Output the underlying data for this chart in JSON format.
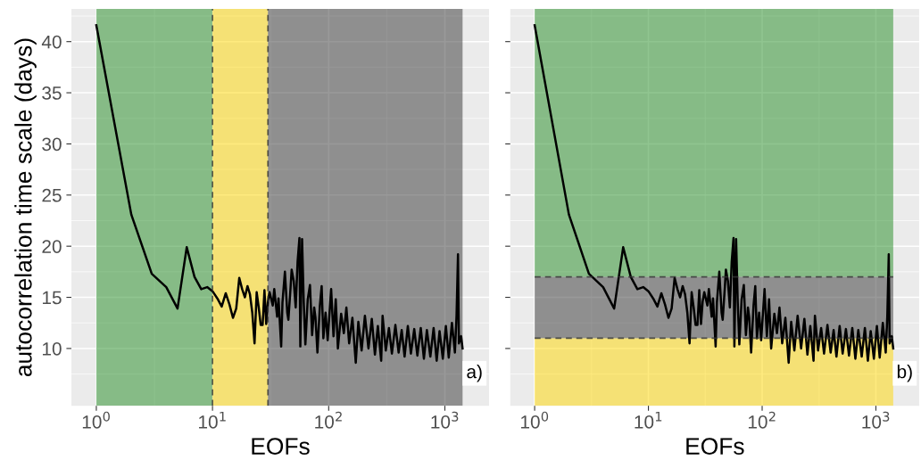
{
  "chart_data": [
    {
      "type": "line",
      "xlabel": "EOFs",
      "ylabel": "autocorrelation time scale (days)",
      "log": "x",
      "grid": true,
      "xlim": [
        0.61,
        2400
      ],
      "ylim": [
        4.4,
        43.2
      ],
      "xticks": [
        {
          "value": 1,
          "label": "10$^{0}$"
        },
        {
          "value": 10,
          "label": "10$^{1}$"
        },
        {
          "value": 100,
          "label": "10$^{2}$"
        },
        {
          "value": 1000,
          "label": "10$^{3}$"
        }
      ],
      "yticks": [
        10,
        15,
        20,
        25,
        30,
        35,
        40
      ],
      "x": [
        1,
        2,
        3,
        4,
        5,
        6,
        7,
        8,
        9,
        10,
        11,
        12,
        13,
        14,
        15,
        16,
        17,
        18,
        19,
        20,
        21,
        22,
        23,
        24,
        25,
        26,
        27,
        28,
        29,
        30,
        31,
        33,
        34,
        36,
        37,
        39,
        40,
        42,
        44,
        45,
        47,
        48,
        50,
        52,
        54,
        56,
        57,
        59,
        61,
        63,
        66,
        69,
        72,
        75,
        77,
        80,
        84,
        87,
        90,
        94,
        98,
        105,
        110,
        115,
        120,
        128,
        135,
        142,
        150,
        160,
        171,
        180,
        192,
        205,
        220,
        235,
        250,
        265,
        283,
        291,
        310,
        330,
        350,
        375,
        400,
        425,
        450,
        480,
        510,
        545,
        580,
        620,
        660,
        700,
        750,
        800,
        850,
        900,
        960,
        1020,
        1080,
        1150,
        1220,
        1260,
        1297,
        1320,
        1380,
        1420
      ],
      "series": [
        {
          "color": "#000000",
          "values": [
            41.6,
            23.1,
            17.3,
            16.0,
            13.9,
            19.9,
            17.0,
            15.8,
            16.0,
            15.6,
            14.9,
            14.1,
            15.4,
            14.3,
            13.0,
            13.9,
            16.9,
            15.8,
            15.0,
            16.1,
            15.3,
            13.5,
            10.5,
            15.5,
            14.0,
            12.3,
            12.3,
            15.7,
            12.4,
            14.6,
            15.5,
            14.2,
            15.8,
            13.1,
            14.9,
            10.2,
            14.5,
            17.5,
            13.5,
            12.8,
            16.0,
            17.7,
            16.6,
            14.0,
            18.5,
            20.8,
            10.2,
            20.7,
            14.5,
            10.4,
            14.8,
            16.2,
            11.3,
            14.0,
            13.0,
            9.6,
            14.2,
            16.1,
            11.0,
            13.5,
            10.8,
            15.8,
            11.2,
            14.8,
            10.0,
            13.4,
            11.5,
            14.0,
            10.5,
            13.0,
            8.6,
            12.6,
            9.8,
            13.2,
            10.0,
            12.9,
            9.4,
            12.2,
            8.8,
            13.2,
            9.8,
            12.0,
            9.5,
            12.3,
            9.6,
            11.8,
            9.2,
            12.2,
            9.5,
            11.9,
            9.3,
            12.0,
            9.0,
            11.8,
            9.2,
            12.0,
            8.8,
            11.7,
            9.0,
            12.2,
            9.1,
            12.5,
            9.6,
            13.2,
            19.2,
            10.5,
            11.2,
            10.0
          ]
        }
      ],
      "bands": [
        {
          "axis": "x",
          "from": 1,
          "to": 10,
          "color": "#228b22"
        },
        {
          "axis": "x",
          "from": 10,
          "to": 30,
          "color": "#ffd700"
        },
        {
          "axis": "x",
          "from": 30,
          "to": 1420,
          "color": "#333333"
        }
      ],
      "ref_lines": [
        {
          "axis": "x",
          "value": 10,
          "line_style": "dashed"
        },
        {
          "axis": "x",
          "value": 30,
          "line_style": "dashed"
        }
      ],
      "annotations": [
        "a)"
      ]
    },
    {
      "type": "line",
      "xlabel": "EOFs",
      "log": "x",
      "grid": true,
      "tick_labels": "x",
      "xlim": [
        0.61,
        2400
      ],
      "ylim": [
        4.4,
        43.2
      ],
      "xticks": [
        {
          "value": 1,
          "label": "10$^{0}$"
        },
        {
          "value": 10,
          "label": "10$^{1}$"
        },
        {
          "value": 100,
          "label": "10$^{2}$"
        },
        {
          "value": 1000,
          "label": "10$^{3}$"
        }
      ],
      "yticks": [
        10,
        15,
        20,
        25,
        30,
        35,
        40
      ],
      "x": [
        1,
        2,
        3,
        4,
        5,
        6,
        7,
        8,
        9,
        10,
        11,
        12,
        13,
        14,
        15,
        16,
        17,
        18,
        19,
        20,
        21,
        22,
        23,
        24,
        25,
        26,
        27,
        28,
        29,
        30,
        31,
        33,
        34,
        36,
        37,
        39,
        40,
        42,
        44,
        45,
        47,
        48,
        50,
        52,
        54,
        56,
        57,
        59,
        61,
        63,
        66,
        69,
        72,
        75,
        77,
        80,
        84,
        87,
        90,
        94,
        98,
        105,
        110,
        115,
        120,
        128,
        135,
        142,
        150,
        160,
        171,
        180,
        192,
        205,
        220,
        235,
        250,
        265,
        283,
        291,
        310,
        330,
        350,
        375,
        400,
        425,
        450,
        480,
        510,
        545,
        580,
        620,
        660,
        700,
        750,
        800,
        850,
        900,
        960,
        1020,
        1080,
        1150,
        1220,
        1260,
        1297,
        1320,
        1380,
        1420
      ],
      "series": [
        {
          "color": "#000000",
          "values": [
            41.6,
            23.1,
            17.3,
            16.0,
            13.9,
            19.9,
            17.0,
            15.8,
            16.0,
            15.6,
            14.9,
            14.1,
            15.4,
            14.3,
            13.0,
            13.9,
            16.9,
            15.8,
            15.0,
            16.1,
            15.3,
            13.5,
            10.5,
            15.5,
            14.0,
            12.3,
            12.3,
            15.7,
            12.4,
            14.6,
            15.5,
            14.2,
            15.8,
            13.1,
            14.9,
            10.2,
            14.5,
            17.5,
            13.5,
            12.8,
            16.0,
            17.7,
            16.6,
            14.0,
            18.5,
            20.8,
            10.2,
            20.7,
            14.5,
            10.4,
            14.8,
            16.2,
            11.3,
            14.0,
            13.0,
            9.6,
            14.2,
            16.1,
            11.0,
            13.5,
            10.8,
            15.8,
            11.2,
            14.8,
            10.0,
            13.4,
            11.5,
            14.0,
            10.5,
            13.0,
            8.6,
            12.6,
            9.8,
            13.2,
            10.0,
            12.9,
            9.4,
            12.2,
            8.8,
            13.2,
            9.8,
            12.0,
            9.5,
            12.3,
            9.6,
            11.8,
            9.2,
            12.2,
            9.5,
            11.9,
            9.3,
            12.0,
            9.0,
            11.8,
            9.2,
            12.0,
            8.8,
            11.7,
            9.0,
            12.2,
            9.1,
            12.5,
            9.6,
            13.2,
            19.2,
            10.5,
            11.2,
            10.0
          ]
        }
      ],
      "bands": [
        {
          "axis": "y",
          "from": 17,
          "to": 43.2,
          "color": "#228b22"
        },
        {
          "axis": "y",
          "from": 11,
          "to": 17,
          "color": "#333333"
        },
        {
          "axis": "y",
          "from": 4.4,
          "to": 11,
          "color": "#ffd700"
        }
      ],
      "ref_lines": [
        {
          "axis": "y",
          "value": 17,
          "line_style": "dashed"
        },
        {
          "axis": "y",
          "value": 11,
          "line_style": "dashed"
        }
      ],
      "annotations": [
        "b)"
      ]
    }
  ]
}
